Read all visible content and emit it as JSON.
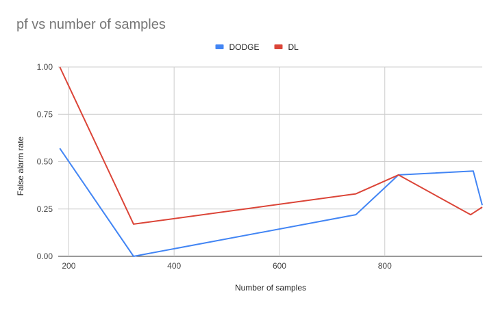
{
  "chart_data": {
    "type": "line",
    "title": "pf vs number of samples",
    "xlabel": "Number of samples",
    "ylabel": "False alarm rate",
    "xlim": [
      180,
      985
    ],
    "ylim": [
      0,
      1
    ],
    "x_ticks": [
      200,
      400,
      600,
      800
    ],
    "x_tick_labels": [
      "200",
      "400",
      "600",
      "800"
    ],
    "y_ticks": [
      0,
      0.25,
      0.5,
      0.75,
      1
    ],
    "y_tick_labels": [
      "0.00",
      "0.25",
      "0.50",
      "0.75",
      "1.00"
    ],
    "grid": true,
    "legend_position": "top-center",
    "series": [
      {
        "name": "DODGE",
        "color": "#4285f4",
        "points": [
          [
            183,
            0.57
          ],
          [
            323,
            0.0
          ],
          [
            745,
            0.22
          ],
          [
            826,
            0.43
          ],
          [
            968,
            0.45
          ],
          [
            985,
            0.27
          ]
        ]
      },
      {
        "name": "DL",
        "color": "#db4437",
        "points": [
          [
            183,
            1.0
          ],
          [
            323,
            0.17
          ],
          [
            745,
            0.33
          ],
          [
            826,
            0.43
          ],
          [
            963,
            0.22
          ],
          [
            985,
            0.26
          ]
        ]
      }
    ]
  }
}
